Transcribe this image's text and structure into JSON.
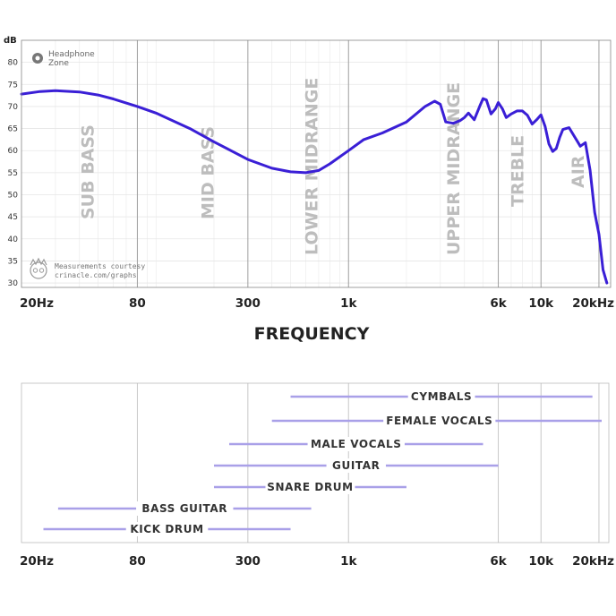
{
  "chart_data": [
    {
      "type": "line",
      "title": "",
      "ylabel": "dB",
      "xlabel": "FREQUENCY",
      "x_scale": "log",
      "xlim": [
        20,
        23000
      ],
      "ylim": [
        29,
        85
      ],
      "y_ticks": [
        30,
        35,
        40,
        45,
        50,
        55,
        60,
        65,
        70,
        75,
        80
      ],
      "y_tick_labels": [
        "30",
        "35",
        "40",
        "45",
        "50",
        "55",
        "60",
        "65",
        "70",
        "75",
        "80"
      ],
      "x_ticks": [
        20,
        80,
        300,
        1000,
        6000,
        10000,
        20000
      ],
      "x_tick_labels": [
        "20Hz",
        "80",
        "300",
        "1k",
        "6k",
        "10k",
        "20kHz"
      ],
      "grid": true,
      "band_labels": [
        {
          "text": "SUB BASS",
          "freq": 44
        },
        {
          "text": "MID BASS",
          "freq": 185
        },
        {
          "text": "LOWER MIDRANGE",
          "freq": 640
        },
        {
          "text": "UPPER MIDRANGE",
          "freq": 3500
        },
        {
          "text": "TREBLE",
          "freq": 7500
        },
        {
          "text": "AIR",
          "freq": 15500
        }
      ],
      "brand": {
        "line1": "Headphone",
        "line2": "Zone"
      },
      "credit": {
        "line1": "Measurements courtesy",
        "line2": "crinacle.com/graphs"
      },
      "series": [
        {
          "color": "#3a1fd6",
          "x": [
            20,
            25,
            30,
            40,
            50,
            60,
            80,
            100,
            150,
            200,
            300,
            400,
            500,
            600,
            700,
            800,
            1000,
            1200,
            1500,
            2000,
            2500,
            2800,
            3000,
            3200,
            3500,
            3800,
            4000,
            4200,
            4500,
            4800,
            5000,
            5200,
            5500,
            5800,
            6000,
            6300,
            6600,
            7000,
            7500,
            8000,
            8500,
            9000,
            9500,
            10000,
            10500,
            11000,
            11500,
            12000,
            12500,
            13000,
            14000,
            15000,
            15500,
            16000,
            17000,
            18000,
            19000,
            20000,
            21000,
            22000
          ],
          "y": [
            72.8,
            73.4,
            73.6,
            73.3,
            72.6,
            71.7,
            70.0,
            68.5,
            65.0,
            62.0,
            58.0,
            56.0,
            55.2,
            55.0,
            55.5,
            57.0,
            60.0,
            62.5,
            64.0,
            66.5,
            70.0,
            71.2,
            70.5,
            66.5,
            66.2,
            66.8,
            67.5,
            68.5,
            67.0,
            70.0,
            71.8,
            71.5,
            68.3,
            69.5,
            70.9,
            69.5,
            67.5,
            68.3,
            69.0,
            69.0,
            68.0,
            66.0,
            67.0,
            68.1,
            65.5,
            61.5,
            59.8,
            60.5,
            63.0,
            64.8,
            65.2,
            63.0,
            62.0,
            61.0,
            61.8,
            55.5,
            46.0,
            41.0,
            33.0,
            30.0
          ]
        }
      ]
    },
    {
      "type": "range",
      "title": "",
      "x_scale": "log",
      "xlim": [
        20,
        23000
      ],
      "x_ticks": [
        20,
        80,
        300,
        1000,
        6000,
        10000,
        20000
      ],
      "x_tick_labels": [
        "20Hz",
        "80",
        "300",
        "1k",
        "6k",
        "10k",
        "20kHz"
      ],
      "grid": true,
      "bar_color": "#a9a0e8",
      "ranges": [
        {
          "label": "CYMBALS",
          "min": 500,
          "max": 18500
        },
        {
          "label": "FEMALE VOCALS",
          "min": 400,
          "max": 22000
        },
        {
          "label": "MALE VOCALS",
          "min": 240,
          "max": 5000
        },
        {
          "label": "GUITAR",
          "min": 200,
          "max": 6000
        },
        {
          "label": "SNARE DRUM",
          "min": 200,
          "max": 2000
        },
        {
          "label": "BASS GUITAR",
          "min": 31,
          "max": 640
        },
        {
          "label": "KICK DRUM",
          "min": 26,
          "max": 500
        }
      ]
    }
  ]
}
